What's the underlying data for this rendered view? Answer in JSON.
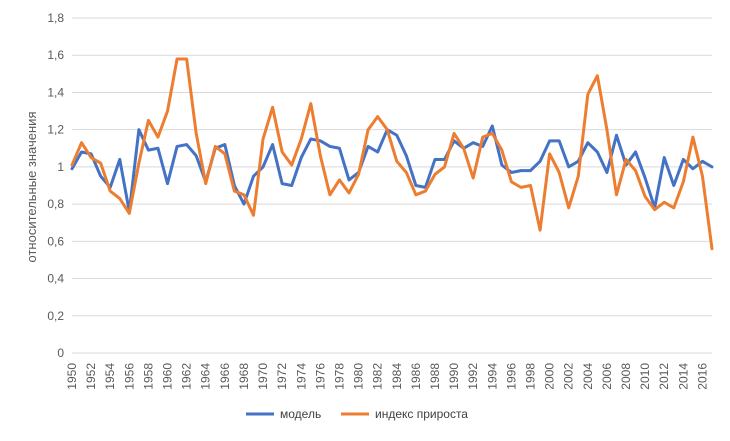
{
  "chart_data": {
    "type": "line",
    "title": "",
    "xlabel": "",
    "ylabel": "относительные значения",
    "ylim": [
      0,
      1.8
    ],
    "grid": true,
    "legend_position": "bottom",
    "y_ticks": [
      "0",
      "0,2",
      "0,4",
      "0,6",
      "0,8",
      "1",
      "1,2",
      "1,4",
      "1,6",
      "1,8"
    ],
    "x": [
      1950,
      1951,
      1952,
      1953,
      1954,
      1955,
      1956,
      1957,
      1958,
      1959,
      1960,
      1961,
      1962,
      1963,
      1964,
      1965,
      1966,
      1967,
      1968,
      1969,
      1970,
      1971,
      1972,
      1973,
      1974,
      1975,
      1976,
      1977,
      1978,
      1979,
      1980,
      1981,
      1982,
      1983,
      1984,
      1985,
      1986,
      1987,
      1988,
      1989,
      1990,
      1991,
      1992,
      1993,
      1994,
      1995,
      1996,
      1997,
      1998,
      1999,
      2000,
      2001,
      2002,
      2003,
      2004,
      2005,
      2006,
      2007,
      2008,
      2009,
      2010,
      2011,
      2012,
      2013,
      2014,
      2015,
      2016,
      2017
    ],
    "x_tick_labels": [
      "1950",
      "1952",
      "1954",
      "1956",
      "1958",
      "1960",
      "1962",
      "1964",
      "1966",
      "1968",
      "1970",
      "1972",
      "1974",
      "1976",
      "1978",
      "1980",
      "1982",
      "1984",
      "1986",
      "1988",
      "1990",
      "1992",
      "1994",
      "1996",
      "1998",
      "2000",
      "2002",
      "2004",
      "2006",
      "2008",
      "2010",
      "2012",
      "2014",
      "2016"
    ],
    "series": [
      {
        "name": "модель",
        "color": "#4472c4",
        "values": [
          0.99,
          1.08,
          1.07,
          0.95,
          0.89,
          1.04,
          0.76,
          1.2,
          1.09,
          1.1,
          0.91,
          1.11,
          1.12,
          1.06,
          0.92,
          1.1,
          1.12,
          0.9,
          0.8,
          0.95,
          1.0,
          1.12,
          0.91,
          0.9,
          1.05,
          1.15,
          1.14,
          1.11,
          1.1,
          0.93,
          0.97,
          1.11,
          1.08,
          1.2,
          1.17,
          1.06,
          0.9,
          0.89,
          1.04,
          1.04,
          1.14,
          1.1,
          1.13,
          1.11,
          1.22,
          1.01,
          0.97,
          0.98,
          0.98,
          1.03,
          1.14,
          1.14,
          1.0,
          1.03,
          1.13,
          1.08,
          0.97,
          1.17,
          1.01,
          1.08,
          0.94,
          0.78,
          1.05,
          0.9,
          1.04,
          0.99,
          1.03,
          1.0
        ]
      },
      {
        "name": "индекс прироста",
        "color": "#ed7d31",
        "values": [
          1.01,
          1.13,
          1.05,
          1.02,
          0.87,
          0.83,
          0.75,
          1.02,
          1.25,
          1.16,
          1.3,
          1.58,
          1.58,
          1.18,
          0.91,
          1.11,
          1.07,
          0.87,
          0.85,
          0.74,
          1.15,
          1.32,
          1.08,
          1.01,
          1.15,
          1.34,
          1.06,
          0.85,
          0.93,
          0.86,
          0.96,
          1.2,
          1.27,
          1.2,
          1.03,
          0.97,
          0.85,
          0.87,
          0.96,
          1.0,
          1.18,
          1.1,
          0.94,
          1.16,
          1.18,
          1.09,
          0.92,
          0.89,
          0.9,
          0.66,
          1.07,
          0.97,
          0.78,
          0.95,
          1.39,
          1.49,
          1.2,
          0.85,
          1.04,
          0.98,
          0.84,
          0.77,
          0.81,
          0.78,
          0.92,
          1.16,
          0.95,
          0.56
        ]
      }
    ]
  }
}
